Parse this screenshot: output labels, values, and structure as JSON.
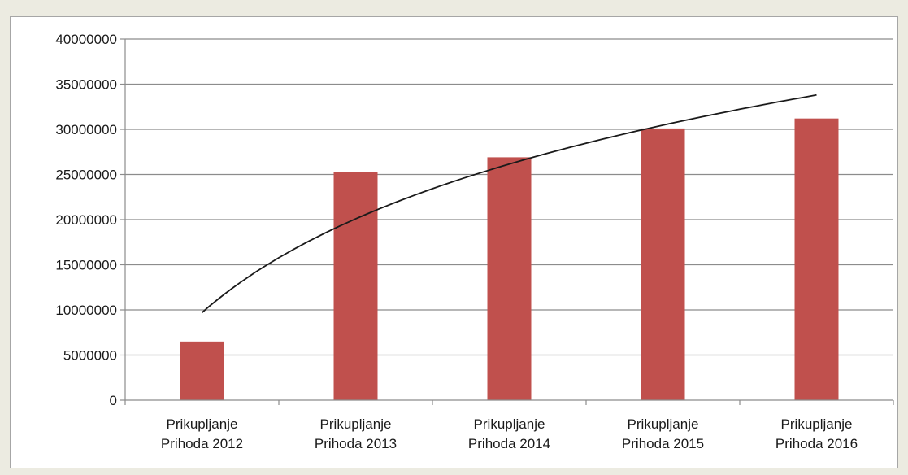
{
  "chart_data": {
    "type": "bar",
    "categories": [
      [
        "Prikupljanje",
        "Prihoda 2012"
      ],
      [
        "Prikupljanje",
        "Prihoda 2013"
      ],
      [
        "Prikupljanje",
        "Prihoda 2014"
      ],
      [
        "Prikupljanje",
        "Prihoda 2015"
      ],
      [
        "Prikupljanje",
        "Prihoda 2016"
      ]
    ],
    "values": [
      6500000,
      25300000,
      26900000,
      30100000,
      31200000
    ],
    "trendline": {
      "type": "logarithmic",
      "values": [
        9700000,
        21500000,
        27700000,
        31300000,
        33800000
      ]
    },
    "ylim": [
      0,
      40000000
    ],
    "yticks": [
      "0",
      "5000000",
      "10000000",
      "15000000",
      "20000000",
      "25000000",
      "30000000",
      "35000000",
      "40000000"
    ],
    "title": "",
    "xlabel": "",
    "ylabel": "",
    "grid": true,
    "legend": "none",
    "colors": {
      "bar": "#c0504d",
      "trendline": "#1a1a1a",
      "grid": "#8c8c8c",
      "background": "#ffffff",
      "frame": "#ecebe1"
    }
  }
}
